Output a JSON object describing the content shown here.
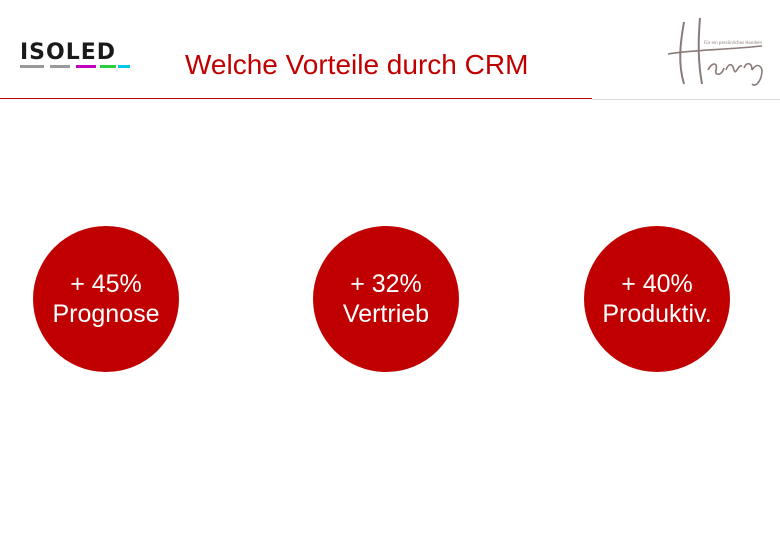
{
  "header": {
    "title": "Welche Vorteile durch CRM",
    "brand_left": "ISOLED",
    "brand_right": "Henry",
    "brand_right_tagline": "Für ein persönliches Handeln",
    "accent_color": "#c00000"
  },
  "stats": [
    {
      "value": "+ 45%",
      "label": "Prognose"
    },
    {
      "value": "+ 32%",
      "label": "Vertrieb"
    },
    {
      "value": "+ 40%",
      "label": "Produktiv."
    }
  ]
}
